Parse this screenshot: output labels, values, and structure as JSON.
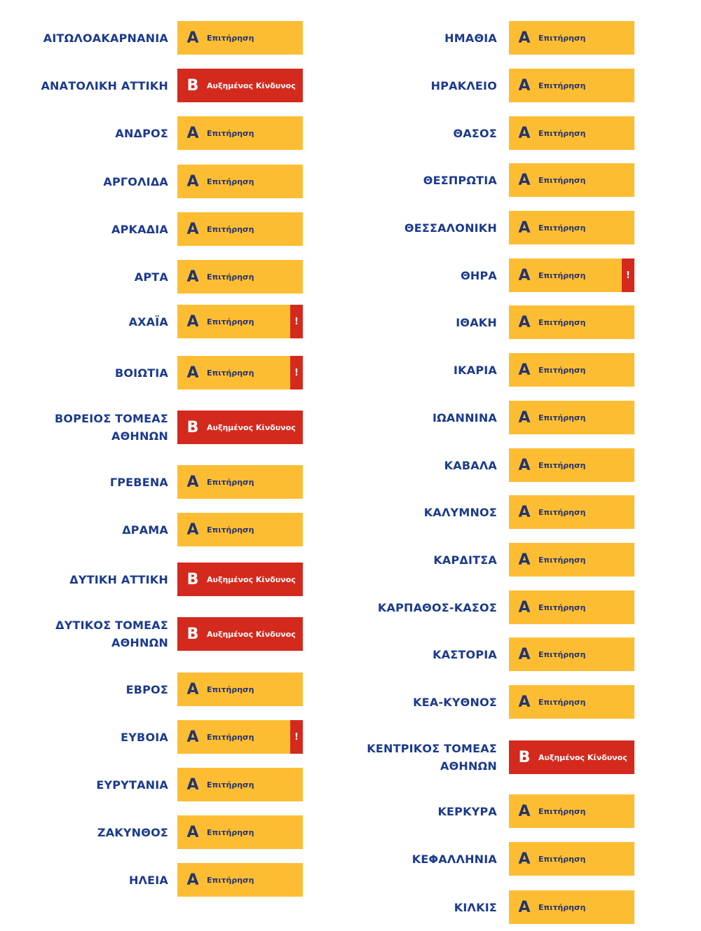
{
  "levels": {
    "A": {
      "letter": "Α",
      "label": "Επιτήρηση",
      "color": "#fdbd33"
    },
    "B": {
      "letter": "Β",
      "label": "Αυξημένος Κίνδυνος",
      "color": "#d42a1e"
    }
  },
  "warning_symbol": "!",
  "regions": [
    {
      "name": "ΑΙΤΩΛΟΑΚΑΡΝΑΝΙΑ",
      "level": "A",
      "alert": false
    },
    {
      "name": "ΑΝΑΤΟΛΙΚΗ ΑΤΤΙΚΗ",
      "level": "B",
      "alert": false
    },
    {
      "name": "ΑΝΔΡΟΣ",
      "level": "A",
      "alert": false
    },
    {
      "name": "ΑΡΓΟΛΙΔΑ",
      "level": "A",
      "alert": false
    },
    {
      "name": "ΑΡΚΑΔΙΑ",
      "level": "A",
      "alert": false
    },
    {
      "name": "ΑΡΤΑ",
      "level": "A",
      "alert": false
    },
    {
      "name": "ΑΧΑΪΑ",
      "level": "A",
      "alert": true
    },
    {
      "name": "ΒΟΙΩΤΙΑ",
      "level": "A",
      "alert": true
    },
    {
      "name": "ΒΟΡΕΙΟΣ ΤΟΜΕΑΣ\nΑΘΗΝΩΝ",
      "level": "B",
      "alert": false
    },
    {
      "name": "ΓΡΕΒΕΝΑ",
      "level": "A",
      "alert": false
    },
    {
      "name": "ΔΡΑΜΑ",
      "level": "A",
      "alert": false
    },
    {
      "name": "ΔΥΤΙΚΗ ΑΤΤΙΚΗ",
      "level": "B",
      "alert": false
    },
    {
      "name": "ΔΥΤΙΚΟΣ ΤΟΜΕΑΣ\nΑΘΗΝΩΝ",
      "level": "B",
      "alert": false
    },
    {
      "name": "ΕΒΡΟΣ",
      "level": "A",
      "alert": false
    },
    {
      "name": "ΕΥΒΟΙΑ",
      "level": "A",
      "alert": true
    },
    {
      "name": "ΕΥΡΥΤΑΝΙΑ",
      "level": "A",
      "alert": false
    },
    {
      "name": "ΖΑΚΥΝΘΟΣ",
      "level": "A",
      "alert": false
    },
    {
      "name": "ΗΛΕΙΑ",
      "level": "A",
      "alert": false
    },
    {
      "name": "ΗΜΑΘΙΑ",
      "level": "A",
      "alert": false
    },
    {
      "name": "ΗΡΑΚΛΕΙΟ",
      "level": "A",
      "alert": false
    },
    {
      "name": "ΘΑΣΟΣ",
      "level": "A",
      "alert": false
    },
    {
      "name": "ΘΕΣΠΡΩΤΙΑ",
      "level": "A",
      "alert": false
    },
    {
      "name": "ΘΕΣΣΑΛΟΝΙΚΗ",
      "level": "A",
      "alert": false
    },
    {
      "name": "ΘΗΡΑ",
      "level": "A",
      "alert": true
    },
    {
      "name": "ΙΘΑΚΗ",
      "level": "A",
      "alert": false
    },
    {
      "name": "ΙΚΑΡΙΑ",
      "level": "A",
      "alert": false
    },
    {
      "name": "ΙΩΑΝΝΙΝΑ",
      "level": "A",
      "alert": false
    },
    {
      "name": "ΚΑΒΑΛΑ",
      "level": "A",
      "alert": false
    },
    {
      "name": "ΚΑΛΥΜΝΟΣ",
      "level": "A",
      "alert": false
    },
    {
      "name": "ΚΑΡΔΙΤΣΑ",
      "level": "A",
      "alert": false
    },
    {
      "name": "ΚΑΡΠΑΘΟΣ-ΚΑΣΟΣ",
      "level": "A",
      "alert": false
    },
    {
      "name": "ΚΑΣΤΟΡΙΑ",
      "level": "A",
      "alert": false
    },
    {
      "name": "ΚΕΑ-ΚΥΘΝΟΣ",
      "level": "A",
      "alert": false
    },
    {
      "name": "ΚΕΝΤΡΙΚΟΣ ΤΟΜΕΑΣ\nΑΘΗΝΩΝ",
      "level": "B",
      "alert": false
    },
    {
      "name": "ΚΕΡΚΥΡΑ",
      "level": "A",
      "alert": false
    },
    {
      "name": "ΚΕΦΑΛΛΗΝΙΑ",
      "level": "A",
      "alert": false
    },
    {
      "name": "ΚΙΛΚΙΣ",
      "level": "A",
      "alert": false
    }
  ]
}
